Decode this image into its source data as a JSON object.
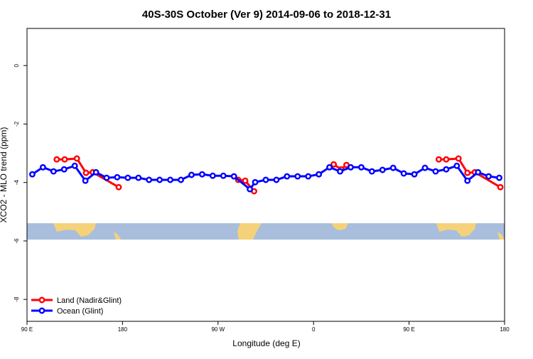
{
  "chart_data": {
    "type": "line",
    "title": "40S-30S October (Ver 9)   2014-09-06 to 2018-12-31",
    "x_label": "Longitude (deg E)",
    "y_label": "XCO2 - MLO trend (ppm)",
    "xlim": [
      90,
      540
    ],
    "xticks": [
      {
        "value": 90,
        "label": "90 E"
      },
      180,
      {
        "value": 270,
        "label": "90 W"
      },
      {
        "value": 360,
        "label": "0"
      },
      {
        "value": 450,
        "label": "90 E"
      },
      {
        "value": 540,
        "label": "180"
      }
    ],
    "ylim": [
      -8.75,
      1.27
    ],
    "yticks": [
      0,
      -2,
      -4,
      -6,
      -8
    ],
    "legend": "bottom-left",
    "series": [
      {
        "name": "Land (Nadir&Glint)",
        "color": "#ff0000",
        "x": [
          118,
          125.5,
          137,
          145.6,
          152,
          176.4,
          null,
          289,
          295.6,
          304,
          null,
          379,
          386,
          391,
          null,
          478,
          485,
          496.6,
          505,
          512,
          536
        ],
        "values": [
          -3.21,
          -3.21,
          -3.18,
          -3.67,
          -3.65,
          -4.16,
          null,
          -3.91,
          -3.94,
          -4.3,
          null,
          -3.38,
          -3.55,
          -3.4,
          null,
          -3.21,
          -3.21,
          -3.18,
          -3.67,
          -3.65,
          -4.16
        ]
      },
      {
        "name": "Ocean (Glint)",
        "color": "#0000ff",
        "x": [
          95,
          105,
          115,
          125,
          135,
          145,
          155,
          165,
          175,
          185,
          195,
          205,
          215,
          225,
          235,
          245,
          255,
          265,
          275,
          285,
          300,
          305,
          315,
          325,
          335,
          345,
          355,
          365,
          375,
          385,
          395,
          405,
          415,
          425,
          435,
          445,
          455,
          465,
          475,
          485,
          495,
          505,
          515,
          525,
          535
        ],
        "values": [
          -3.72,
          -3.48,
          -3.62,
          -3.55,
          -3.43,
          -3.94,
          -3.65,
          -3.84,
          -3.82,
          -3.84,
          -3.84,
          -3.91,
          -3.91,
          -3.91,
          -3.91,
          -3.74,
          -3.72,
          -3.77,
          -3.77,
          -3.79,
          -4.23,
          -3.99,
          -3.91,
          -3.91,
          -3.79,
          -3.79,
          -3.79,
          -3.72,
          -3.48,
          -3.62,
          -3.48,
          -3.48,
          -3.62,
          -3.57,
          -3.5,
          -3.69,
          -3.72,
          -3.5,
          -3.62,
          -3.55,
          -3.43,
          -3.94,
          -3.65,
          -3.79,
          -3.84
        ]
      }
    ]
  }
}
